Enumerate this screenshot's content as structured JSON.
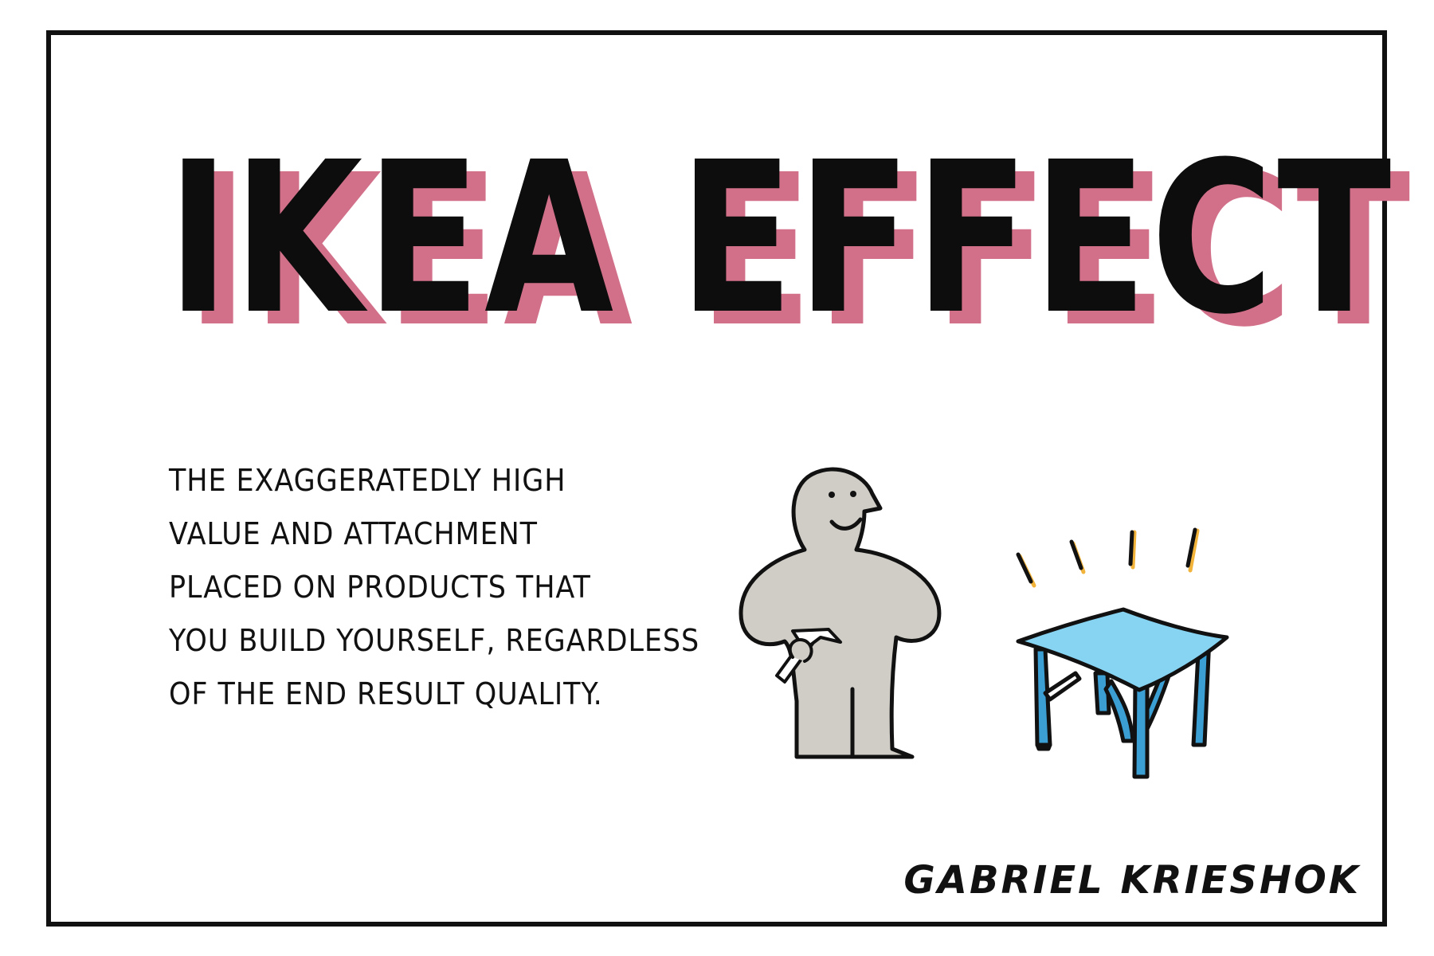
{
  "title": "IKEA EFFECT",
  "description": {
    "lines": [
      "THE EXAGGERATEDLY HIGH",
      "VALUE AND ATTACHMENT",
      "PLACED ON PRODUCTS THAT",
      "YOU BUILD YOURSELF, REGARDLESS",
      "OF THE END RESULT QUALITY."
    ]
  },
  "signature": "GABRIEL KRIESHOK",
  "colors": {
    "title_shadow": "#d2708a",
    "ink": "#111111",
    "figure": "#cfcdc6",
    "table_top": "#87d3f2",
    "table_legs": "#3b9fd4",
    "sparkle_accent": "#f2b33a"
  },
  "icons": [
    "ikea-man-icon",
    "hammer-icon",
    "table-icon",
    "sparkle-icon"
  ]
}
